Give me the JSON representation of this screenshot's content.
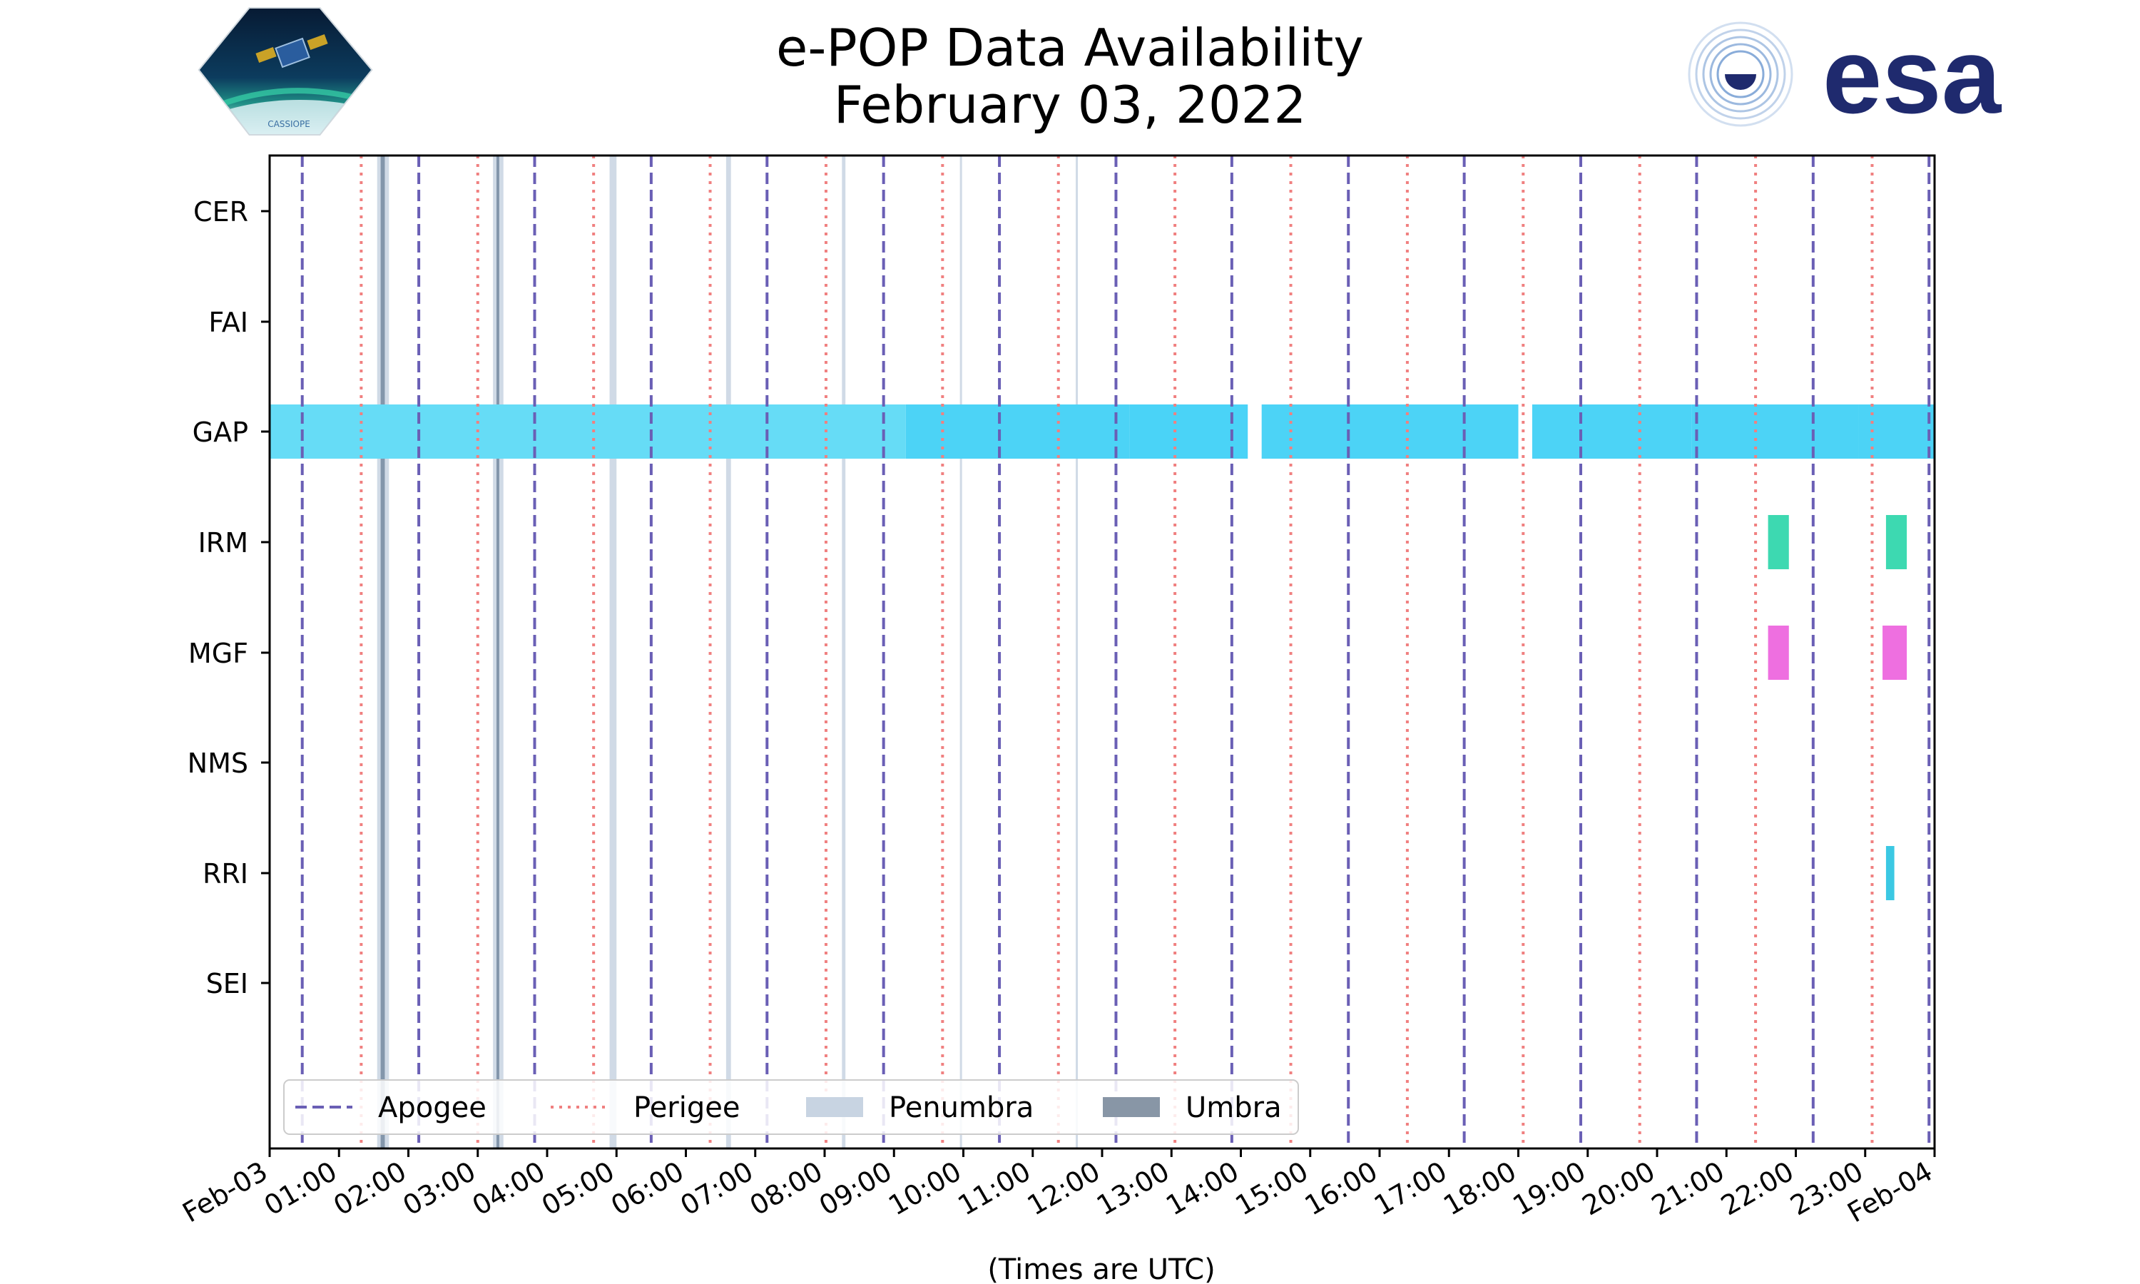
{
  "chart_data": {
    "type": "timeline",
    "title": "e-POP Data Availability",
    "subtitle": "February 03, 2022",
    "xlabel": "(Times are UTC)",
    "x_tick_labels": [
      "Feb-03",
      "01:00",
      "02:00",
      "03:00",
      "04:00",
      "05:00",
      "06:00",
      "07:00",
      "08:00",
      "09:00",
      "10:00",
      "11:00",
      "12:00",
      "13:00",
      "14:00",
      "15:00",
      "16:00",
      "17:00",
      "18:00",
      "19:00",
      "20:00",
      "21:00",
      "22:00",
      "23:00",
      "Feb-04"
    ],
    "xlim_hours": [
      0,
      24
    ],
    "instruments": [
      "CER",
      "FAI",
      "GAP",
      "IRM",
      "MGF",
      "NMS",
      "RRI",
      "SEI"
    ],
    "availability": {
      "CER": [],
      "FAI": [],
      "GAP": [
        {
          "start": 0.0,
          "end": 9.17,
          "color": "#66dcf6"
        },
        {
          "start": 9.17,
          "end": 12.4,
          "color": "#4cd3f6"
        },
        {
          "start": 12.4,
          "end": 14.1,
          "color": "#4ad3f7"
        },
        {
          "start": 14.3,
          "end": 16.0,
          "color": "#4cd3f6"
        },
        {
          "start": 16.0,
          "end": 18.0,
          "color": "#4cd3f6"
        },
        {
          "start": 18.2,
          "end": 20.5,
          "color": "#4cd3f6"
        },
        {
          "start": 20.5,
          "end": 22.9,
          "color": "#4cd3f6"
        },
        {
          "start": 22.9,
          "end": 24.0,
          "color": "#4cd3f6"
        }
      ],
      "IRM": [
        {
          "start": 21.6,
          "end": 21.9,
          "color": "#3dd9b1"
        },
        {
          "start": 23.3,
          "end": 23.6,
          "color": "#3dd9b1"
        }
      ],
      "MGF": [
        {
          "start": 21.6,
          "end": 21.9,
          "color": "#ee6fe0"
        },
        {
          "start": 23.25,
          "end": 23.6,
          "color": "#ee6fe0"
        }
      ],
      "NMS": [],
      "RRI": [
        {
          "start": 23.3,
          "end": 23.42,
          "color": "#3bc8e3"
        }
      ],
      "SEI": []
    },
    "apogee_hours": [
      0.47,
      2.15,
      3.82,
      5.5,
      7.17,
      8.85,
      10.52,
      12.2,
      13.87,
      15.55,
      17.22,
      18.9,
      20.57,
      22.25,
      23.92
    ],
    "perigee_hours": [
      1.32,
      3.0,
      4.67,
      6.35,
      8.02,
      9.7,
      11.37,
      13.05,
      14.72,
      16.4,
      18.07,
      19.75,
      21.42,
      23.1
    ],
    "penumbra_hours": [
      {
        "start": 1.55,
        "end": 1.72
      },
      {
        "start": 3.22,
        "end": 3.37
      },
      {
        "start": 4.9,
        "end": 5.0
      },
      {
        "start": 6.58,
        "end": 6.65
      },
      {
        "start": 8.25,
        "end": 8.3
      },
      {
        "start": 9.95,
        "end": 9.98
      },
      {
        "start": 11.62,
        "end": 11.65
      }
    ],
    "umbra_hours": [
      {
        "start": 1.6,
        "end": 1.66
      },
      {
        "start": 3.27,
        "end": 3.31
      }
    ],
    "legend": {
      "position": "lower-left",
      "entries": [
        {
          "label": "Apogee",
          "style": "dashed",
          "color": "#6a5fb5"
        },
        {
          "label": "Perigee",
          "style": "dotted",
          "color": "#f08080"
        },
        {
          "label": "Penumbra",
          "style": "patch",
          "color": "#c8d4e2"
        },
        {
          "label": "Umbra",
          "style": "patch",
          "color": "#8896a6"
        }
      ]
    },
    "colors": {
      "apogee": "#6a5fb5",
      "perigee": "#f08080",
      "penumbra": "#c8d4e2",
      "umbra": "#7a8ea4"
    }
  },
  "logos": {
    "left": {
      "name": "cassiope-mission-logo",
      "text": "CASSIOPE"
    },
    "right": {
      "name": "esa-logo",
      "text": "esa",
      "color": "#1f2a6e"
    }
  }
}
